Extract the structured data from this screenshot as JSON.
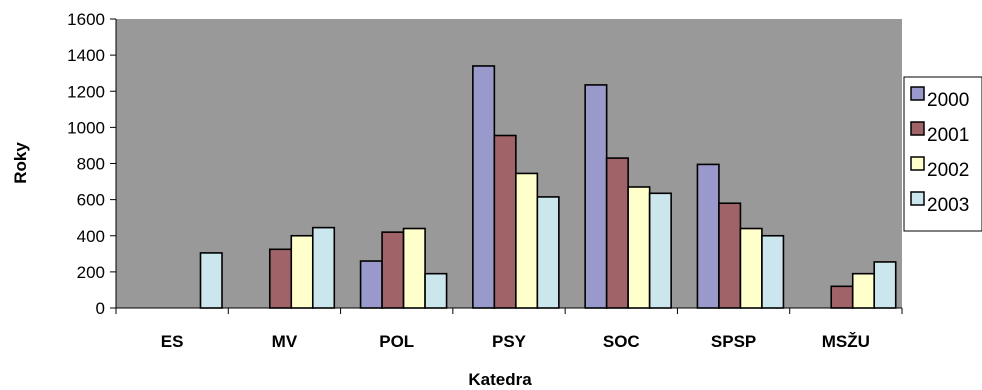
{
  "chart_data": {
    "type": "bar",
    "title": "",
    "xlabel": "Katedra",
    "ylabel": "Roky",
    "categories": [
      "ES",
      "MV",
      "POL",
      "PSY",
      "SOC",
      "SPSP",
      "MSŽU"
    ],
    "ylim": [
      0,
      1600
    ],
    "yticks": [
      0,
      200,
      400,
      600,
      800,
      1000,
      1200,
      1400,
      1600
    ],
    "grid": false,
    "legend_position": "right",
    "plot_background": "#999999",
    "series": [
      {
        "name": "2000",
        "color": "#9999CC",
        "values": [
          0,
          0,
          260,
          1340,
          1235,
          795,
          0
        ]
      },
      {
        "name": "2001",
        "color": "#A06468",
        "values": [
          0,
          325,
          420,
          955,
          830,
          580,
          120
        ]
      },
      {
        "name": "2002",
        "color": "#FFFFCC",
        "values": [
          0,
          400,
          440,
          745,
          670,
          440,
          190
        ]
      },
      {
        "name": "2003",
        "color": "#CCE6EE",
        "values": [
          305,
          445,
          190,
          615,
          635,
          400,
          255
        ]
      }
    ]
  }
}
